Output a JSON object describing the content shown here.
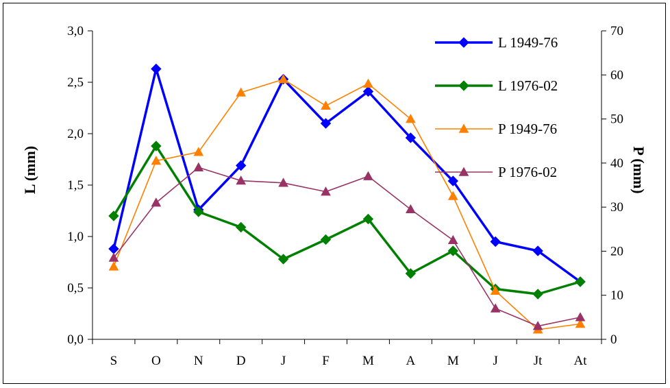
{
  "chart_data": {
    "type": "line",
    "categories": [
      "S",
      "O",
      "N",
      "D",
      "J",
      "F",
      "M",
      "A",
      "M",
      "J",
      "Jt",
      "At"
    ],
    "y_left": {
      "label": "L (mm)",
      "range": [
        0,
        3
      ],
      "ticks": [
        "0,0",
        "0,5",
        "1,0",
        "1,5",
        "2,0",
        "2,5",
        "3,0"
      ]
    },
    "y_right": {
      "label": "P (mm)",
      "range": [
        0,
        70
      ],
      "ticks": [
        "0",
        "10",
        "20",
        "30",
        "40",
        "50",
        "60",
        "70"
      ]
    },
    "series": [
      {
        "name": "L 1949-76",
        "axis": "left",
        "color": "#0000ff",
        "marker": "diamond",
        "values": [
          0.88,
          2.63,
          1.26,
          1.69,
          2.53,
          2.1,
          2.41,
          1.96,
          1.54,
          0.95,
          0.86,
          0.56
        ]
      },
      {
        "name": "L 1976-02",
        "axis": "left",
        "color": "#008000",
        "marker": "diamond",
        "values": [
          1.2,
          1.88,
          1.24,
          1.09,
          0.78,
          0.97,
          1.17,
          0.64,
          0.86,
          0.49,
          0.44,
          0.56
        ]
      },
      {
        "name": "P 1949-76",
        "axis": "right",
        "color": "#ff8000",
        "marker": "triangle",
        "values": [
          16.5,
          40.5,
          42.5,
          56.0,
          59.0,
          53.0,
          58.0,
          50.0,
          32.5,
          11.0,
          2.2,
          3.5
        ]
      },
      {
        "name": "P 1976-02",
        "axis": "right",
        "color": "#993366",
        "marker": "triangle",
        "values": [
          18.5,
          31.0,
          39.0,
          36.0,
          35.5,
          33.5,
          37.0,
          29.5,
          22.5,
          7.0,
          3.0,
          5.0
        ]
      }
    ],
    "grid": false,
    "legend_position": "top-right"
  }
}
